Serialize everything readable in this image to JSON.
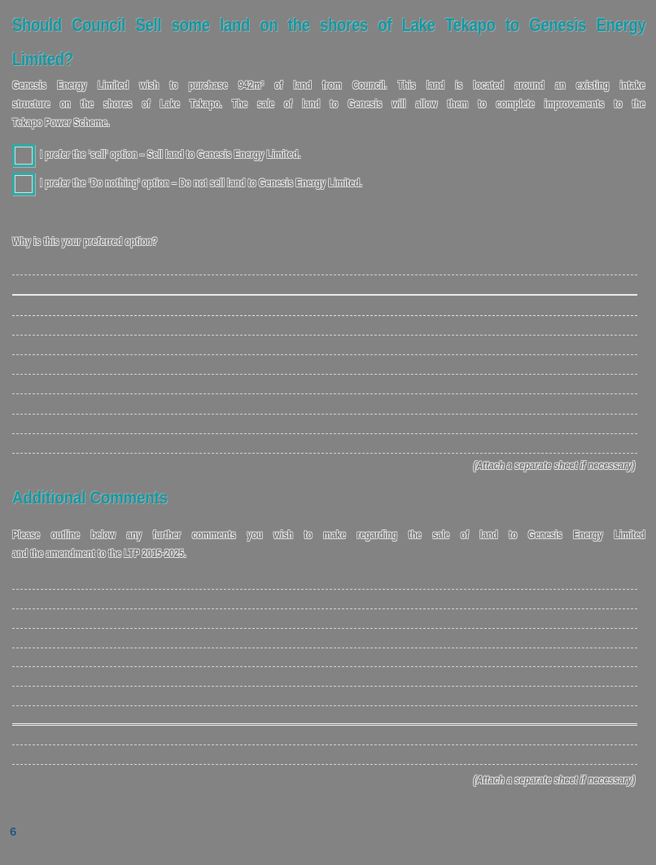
{
  "page": {
    "background_color": "#838383",
    "accent_teal": "#0E98A2",
    "checkbox_teal": "#2BACA6",
    "page_number": "6",
    "page_number_color": "#1F4E79"
  },
  "question_section": {
    "title_line1": "Should Council Sell some land on the shores of Lake Tekapo to Genesis Energy",
    "title_line2": "Limited?",
    "intro_lines": [
      "Genesis Energy Limited wish to purchase 942m² of land from Council. This land is located around an existing intake",
      "structure on the shores of Lake Tekapo. The sale of land to Genesis will allow them to complete improvements to the",
      "Tekapo Power Scheme."
    ],
    "options": [
      {
        "label": "I prefer the ‘sell’ option – Sell land to Genesis Energy Limited.",
        "checked": false
      },
      {
        "label": "I prefer the ‘Do nothing’ option – Do not sell land to Genesis Energy Limited.",
        "checked": false
      }
    ],
    "prompt": "Why is this your preferred option?",
    "writing_lines": 10,
    "attach_note": "(Attach a separate sheet if necessary)"
  },
  "comments_section": {
    "heading": "Additional Comments",
    "intro_lines": [
      "Please outline below any further comments you wish to make regarding the sale of land to Genesis Energy Limited",
      "and the amendment to the LTP 2015-2025."
    ],
    "writing_lines": 10,
    "attach_note": "(Attach a separate sheet if necessary)"
  }
}
